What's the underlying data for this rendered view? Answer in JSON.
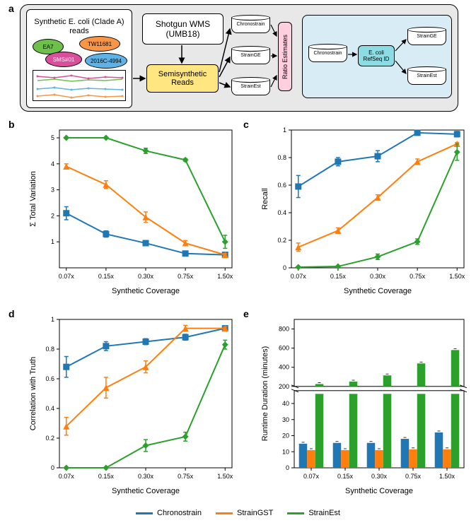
{
  "panel_labels": {
    "a": "a",
    "b": "b",
    "c": "c",
    "d": "d",
    "e": "e"
  },
  "colors": {
    "chronostrain": "#1f77b4",
    "straingst": "#ff7f0e",
    "strainest": "#2ca02c",
    "bg_grey": "#e8e8e8",
    "semisynthetic": "#ffe680",
    "ratio": "#ffcfe0",
    "blue_panel": "#d8ecf6",
    "refseq": "#8bdde3",
    "ea7_green": "#6fbf4b",
    "tw_orange": "#f79646",
    "sms_pink": "#d94f9a",
    "ecoli_blue": "#5eb2e6",
    "axis": "#000000",
    "grid": "#e0e0e0"
  },
  "diagram": {
    "synth_box": "Synthetic E. coli\n(Clade A) reads",
    "shotgun_box": "Shotgun WMS\n(UMB18)",
    "semisynth": "Semisynthetic\nReads",
    "ratio": "Ratio Estimates",
    "db1": "Chronostrain",
    "db2": "StrainGE",
    "db3": "StrainEst",
    "refseq": "E. coli\nRefSeq ID",
    "db_right1": "StrainGE",
    "db_right2": "StrainEst",
    "db_chrono_right": "Chronostrain",
    "ellipses": {
      "ea7": "EA7",
      "tw": "TW11681",
      "sms": "SMS#01",
      "ecoli": "2016C-4994"
    }
  },
  "x_labels": [
    "0.07x",
    "0.15x",
    "0.30x",
    "0.75x",
    "1.50x"
  ],
  "x_axis_title": "Synthetic Coverage",
  "panel_b": {
    "ylabel": "Σ Total Variation",
    "ylim": [
      0,
      5.3
    ],
    "yticks": [
      1,
      2,
      3,
      4,
      5
    ],
    "series": {
      "chronostrain": [
        2.1,
        1.3,
        0.95,
        0.55,
        0.5
      ],
      "straingst": [
        3.9,
        3.2,
        1.95,
        0.95,
        0.5
      ],
      "strainest": [
        5.0,
        5.0,
        4.5,
        4.15,
        1.0
      ]
    },
    "err": {
      "chronostrain": [
        0.25,
        0.12,
        0.08,
        0.05,
        0.05
      ],
      "straingst": [
        0.1,
        0.15,
        0.2,
        0.1,
        0.05
      ],
      "strainest": [
        0.02,
        0.02,
        0.1,
        0.05,
        0.25
      ]
    }
  },
  "panel_c": {
    "ylabel": "Recall",
    "ylim": [
      0,
      1.0
    ],
    "yticks": [
      0.0,
      0.2,
      0.4,
      0.6,
      0.8,
      1.0
    ],
    "series": {
      "chronostrain": [
        0.59,
        0.77,
        0.81,
        0.98,
        0.97
      ],
      "straingst": [
        0.15,
        0.27,
        0.51,
        0.77,
        0.9
      ],
      "strainest": [
        0.005,
        0.01,
        0.08,
        0.19,
        0.84
      ]
    },
    "err": {
      "chronostrain": [
        0.08,
        0.03,
        0.04,
        0.01,
        0.02
      ],
      "straingst": [
        0.03,
        0.02,
        0.02,
        0.02,
        0.01
      ],
      "strainest": [
        0.0,
        0.0,
        0.02,
        0.02,
        0.06
      ]
    }
  },
  "panel_d": {
    "ylabel": "Correlation with Truth",
    "ylim": [
      0,
      1.0
    ],
    "yticks": [
      0.0,
      0.2,
      0.4,
      0.6,
      0.8,
      1.0
    ],
    "series": {
      "chronostrain": [
        0.68,
        0.82,
        0.85,
        0.88,
        0.94
      ],
      "straingst": [
        0.28,
        0.54,
        0.68,
        0.94,
        0.94
      ],
      "strainest": [
        0.0,
        0.0,
        0.15,
        0.21,
        0.83
      ]
    },
    "err": {
      "chronostrain": [
        0.07,
        0.03,
        0.02,
        0.02,
        0.01
      ],
      "straingst": [
        0.06,
        0.07,
        0.04,
        0.02,
        0.01
      ],
      "strainest": [
        0.0,
        0.0,
        0.04,
        0.03,
        0.03
      ]
    }
  },
  "panel_e": {
    "ylabel": "Runtime Duration (minutes)",
    "low_ylim": [
      0,
      48
    ],
    "low_yticks": [
      0,
      10,
      20,
      30,
      40
    ],
    "high_ylim": [
      200,
      900
    ],
    "high_yticks": [
      200,
      400,
      600,
      800
    ],
    "bars": {
      "chronostrain": [
        15,
        15.5,
        15.5,
        18,
        22
      ],
      "straingst": [
        11,
        11,
        11,
        11.5,
        11.5
      ],
      "strainest_low": [
        46,
        46,
        46,
        46,
        46
      ],
      "strainest_high": [
        225,
        250,
        315,
        440,
        580
      ]
    },
    "bar_width": 0.24
  },
  "legend": {
    "items": [
      "Chronostrain",
      "StrainGST",
      "StrainEst"
    ]
  },
  "markers": {
    "chronostrain": "square",
    "straingst": "triangle",
    "strainest": "diamond"
  }
}
